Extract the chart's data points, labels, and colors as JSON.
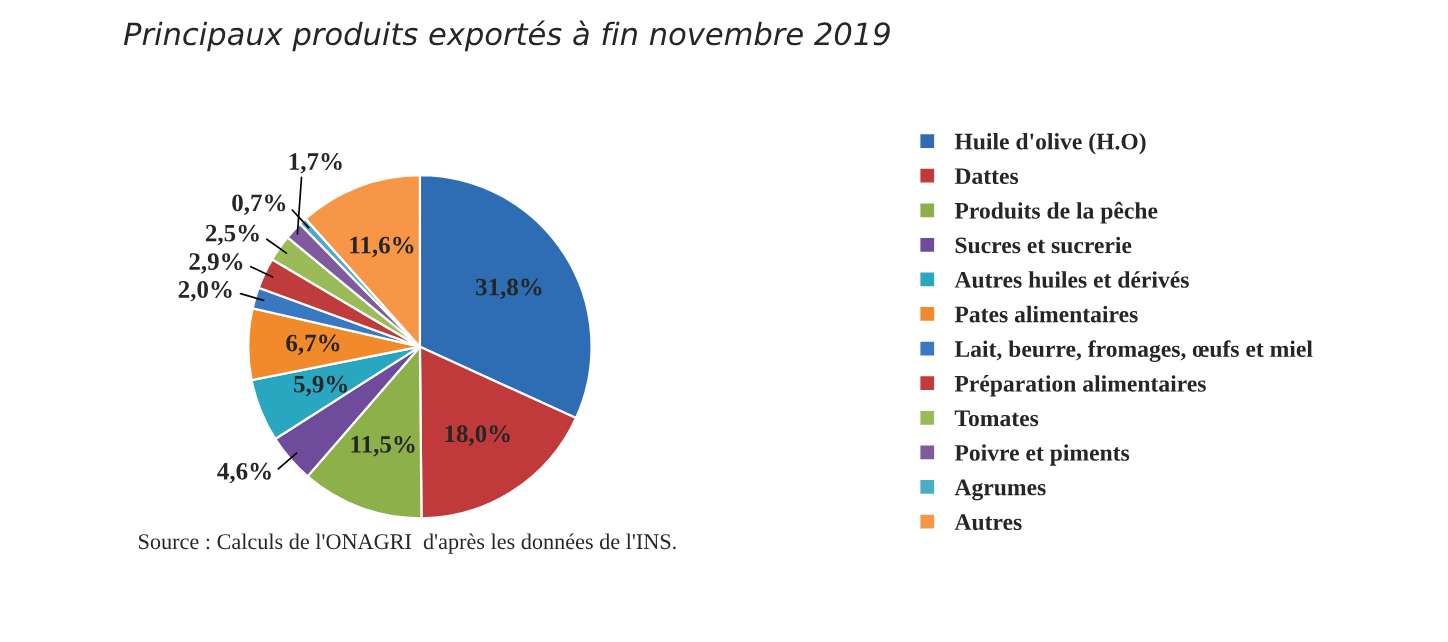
{
  "chart_data": {
    "type": "pie",
    "title": "Principaux produits exportés à fin novembre 2019",
    "categories": [
      "Huile d'olive (H.O)",
      "Dattes",
      "Produits de la pêche",
      "Sucres et sucrerie",
      "Autres huiles et dérivés",
      "Pates alimentaires",
      "Lait, beurre, fromages, œufs et miel",
      "Préparation alimentaires",
      "Tomates",
      "Poivre et piments",
      "Agrumes",
      "Autres"
    ],
    "values": [
      31.8,
      18.0,
      11.5,
      4.6,
      5.9,
      6.7,
      2.0,
      2.9,
      2.5,
      1.7,
      0.7,
      11.6
    ],
    "colors": [
      "#2e6db4",
      "#c0393b",
      "#8db04a",
      "#6f4c9b",
      "#2aa7c0",
      "#f08a2b",
      "#3a78c2",
      "#c03b3b",
      "#9bbb59",
      "#7f5a9e",
      "#4bacc6",
      "#f79646"
    ],
    "value_labels": [
      "31,8%",
      "18,0%",
      "11,5%",
      "4,6%",
      "5,9%",
      "6,7%",
      "2,0%",
      "2,9%",
      "2,5%",
      "1,7%",
      "0,7%",
      "11,6%"
    ],
    "legend": "right",
    "annotations": [
      "Source : Calculs de l'ONAGRI  d'après les données de l'INS."
    ]
  }
}
